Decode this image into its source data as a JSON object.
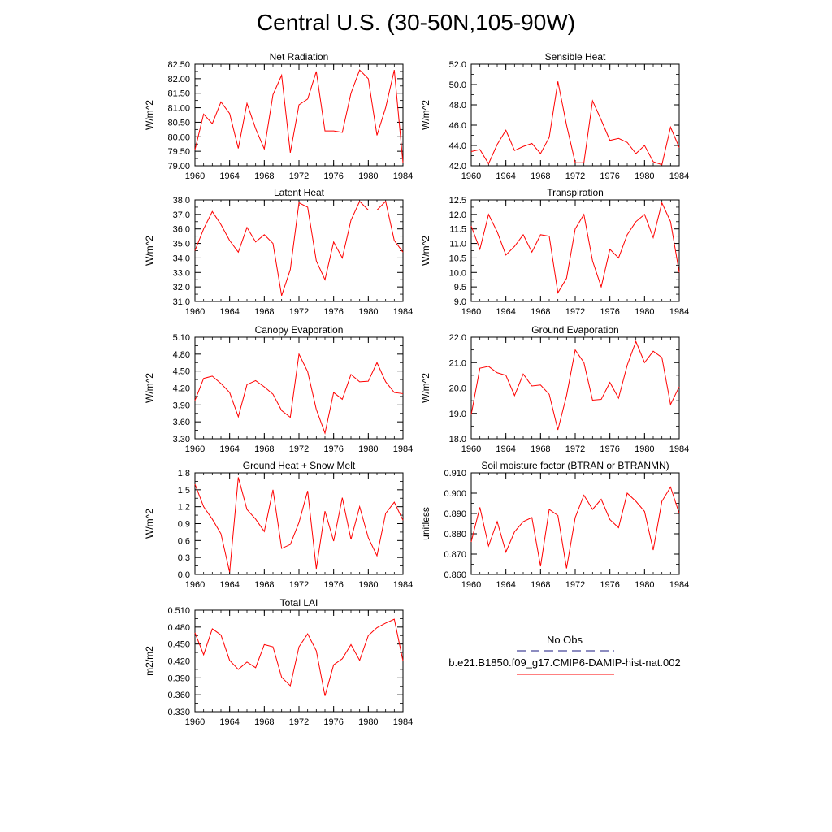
{
  "title": "Central U.S. (30-50N,105-90W)",
  "legend": {
    "obs_label": "No Obs",
    "model_label": "b.e21.B1850.f09_g17.CMIP6-DAMIP-hist-nat.002",
    "obs_color": "#1a1a80",
    "model_color": "#ff0000"
  },
  "chart_data": [
    {
      "type": "line",
      "title": "Net Radiation",
      "ylabel": "W/m^2",
      "xlim": [
        1960,
        1984
      ],
      "ylim": [
        79.0,
        82.5
      ],
      "y_decimals": 2,
      "xticks": [
        1960,
        1964,
        1968,
        1972,
        1976,
        1980,
        1984
      ],
      "yticks": [
        79.0,
        79.5,
        80.0,
        80.5,
        81.0,
        81.5,
        82.0,
        82.5
      ],
      "x": [
        1960,
        1961,
        1962,
        1963,
        1964,
        1965,
        1966,
        1967,
        1968,
        1969,
        1970,
        1971,
        1972,
        1973,
        1974,
        1975,
        1976,
        1977,
        1978,
        1979,
        1980,
        1981,
        1982,
        1983,
        1984
      ],
      "series": [
        {
          "values": [
            79.55,
            80.78,
            80.45,
            81.2,
            80.8,
            79.6,
            81.15,
            80.28,
            79.58,
            81.45,
            82.12,
            79.45,
            81.1,
            81.3,
            82.25,
            80.2,
            80.2,
            80.15,
            81.5,
            82.3,
            82.0,
            80.05,
            81.0,
            82.3,
            79.1
          ]
        }
      ]
    },
    {
      "type": "line",
      "title": "Sensible Heat",
      "ylabel": "W/m^2",
      "xlim": [
        1960,
        1984
      ],
      "ylim": [
        42.0,
        52.0
      ],
      "y_decimals": 1,
      "xticks": [
        1960,
        1964,
        1968,
        1972,
        1976,
        1980,
        1984
      ],
      "yticks": [
        42.0,
        44.0,
        46.0,
        48.0,
        50.0,
        52.0
      ],
      "x": [
        1960,
        1961,
        1962,
        1963,
        1964,
        1965,
        1966,
        1967,
        1968,
        1969,
        1970,
        1971,
        1972,
        1973,
        1974,
        1975,
        1976,
        1977,
        1978,
        1979,
        1980,
        1981,
        1982,
        1983,
        1984
      ],
      "series": [
        {
          "values": [
            43.4,
            43.6,
            42.2,
            44.1,
            45.5,
            43.5,
            43.9,
            44.2,
            43.2,
            44.8,
            50.3,
            46.0,
            42.3,
            42.3,
            48.4,
            46.5,
            44.5,
            44.7,
            44.3,
            43.2,
            44.0,
            42.4,
            42.1,
            45.8,
            43.8
          ]
        }
      ]
    },
    {
      "type": "line",
      "title": "Latent Heat",
      "ylabel": "W/m^2",
      "xlim": [
        1960,
        1984
      ],
      "ylim": [
        31.0,
        38.0
      ],
      "y_decimals": 1,
      "xticks": [
        1960,
        1964,
        1968,
        1972,
        1976,
        1980,
        1984
      ],
      "yticks": [
        31.0,
        32.0,
        33.0,
        34.0,
        35.0,
        36.0,
        37.0,
        38.0
      ],
      "x": [
        1960,
        1961,
        1962,
        1963,
        1964,
        1965,
        1966,
        1967,
        1968,
        1969,
        1970,
        1971,
        1972,
        1973,
        1974,
        1975,
        1976,
        1977,
        1978,
        1979,
        1980,
        1981,
        1982,
        1983,
        1984
      ],
      "series": [
        {
          "values": [
            34.5,
            36.0,
            37.2,
            36.3,
            35.2,
            34.4,
            36.1,
            35.1,
            35.6,
            35.0,
            31.4,
            33.2,
            37.8,
            37.5,
            33.8,
            32.5,
            35.1,
            34.0,
            36.6,
            37.9,
            37.3,
            37.3,
            37.9,
            35.2,
            34.4
          ]
        }
      ]
    },
    {
      "type": "line",
      "title": "Transpiration",
      "ylabel": "W/m^2",
      "xlim": [
        1960,
        1984
      ],
      "ylim": [
        9.0,
        12.5
      ],
      "y_decimals": 1,
      "xticks": [
        1960,
        1964,
        1968,
        1972,
        1976,
        1980,
        1984
      ],
      "yticks": [
        9.0,
        9.5,
        10.0,
        10.5,
        11.0,
        11.5,
        12.0,
        12.5
      ],
      "x": [
        1960,
        1961,
        1962,
        1963,
        1964,
        1965,
        1966,
        1967,
        1968,
        1969,
        1970,
        1971,
        1972,
        1973,
        1974,
        1975,
        1976,
        1977,
        1978,
        1979,
        1980,
        1981,
        1982,
        1983,
        1984
      ],
      "series": [
        {
          "values": [
            11.6,
            10.8,
            12.0,
            11.4,
            10.6,
            10.9,
            11.3,
            10.7,
            11.3,
            11.25,
            9.3,
            9.8,
            11.5,
            12.0,
            10.4,
            9.5,
            10.8,
            10.5,
            11.3,
            11.75,
            12.0,
            11.2,
            12.4,
            11.75,
            10.0
          ]
        }
      ]
    },
    {
      "type": "line",
      "title": "Canopy Evaporation",
      "ylabel": "W/m^2",
      "xlim": [
        1960,
        1984
      ],
      "ylim": [
        3.3,
        5.1
      ],
      "y_decimals": 2,
      "xticks": [
        1960,
        1964,
        1968,
        1972,
        1976,
        1980,
        1984
      ],
      "yticks": [
        3.3,
        3.6,
        3.9,
        4.2,
        4.5,
        4.8,
        5.1
      ],
      "x": [
        1960,
        1961,
        1962,
        1963,
        1964,
        1965,
        1966,
        1967,
        1968,
        1969,
        1970,
        1971,
        1972,
        1973,
        1974,
        1975,
        1976,
        1977,
        1978,
        1979,
        1980,
        1981,
        1982,
        1983,
        1984
      ],
      "series": [
        {
          "values": [
            3.98,
            4.37,
            4.41,
            4.28,
            4.12,
            3.69,
            4.26,
            4.33,
            4.22,
            4.09,
            3.8,
            3.68,
            4.8,
            4.49,
            3.82,
            3.4,
            4.12,
            4.0,
            4.44,
            4.31,
            4.32,
            4.65,
            4.31,
            4.12,
            4.1
          ]
        }
      ]
    },
    {
      "type": "line",
      "title": "Ground Evaporation",
      "ylabel": "W/m^2",
      "xlim": [
        1960,
        1984
      ],
      "ylim": [
        18.0,
        22.0
      ],
      "y_decimals": 1,
      "xticks": [
        1960,
        1964,
        1968,
        1972,
        1976,
        1980,
        1984
      ],
      "yticks": [
        18.0,
        19.0,
        20.0,
        21.0,
        22.0
      ],
      "x": [
        1960,
        1961,
        1962,
        1963,
        1964,
        1965,
        1966,
        1967,
        1968,
        1969,
        1970,
        1971,
        1972,
        1973,
        1974,
        1975,
        1976,
        1977,
        1978,
        1979,
        1980,
        1981,
        1982,
        1983,
        1984
      ],
      "series": [
        {
          "values": [
            18.95,
            20.78,
            20.85,
            20.6,
            20.5,
            19.7,
            20.55,
            20.08,
            20.12,
            19.75,
            18.35,
            19.7,
            21.5,
            21.0,
            19.52,
            19.55,
            20.22,
            19.6,
            20.9,
            21.83,
            21.0,
            21.45,
            21.2,
            19.35,
            20.05
          ]
        }
      ]
    },
    {
      "type": "line",
      "title": "Ground Heat + Snow Melt",
      "ylabel": "W/m^2",
      "xlim": [
        1960,
        1984
      ],
      "ylim": [
        0.0,
        1.8
      ],
      "y_decimals": 1,
      "xticks": [
        1960,
        1964,
        1968,
        1972,
        1976,
        1980,
        1984
      ],
      "yticks": [
        0.0,
        0.3,
        0.6,
        0.9,
        1.2,
        1.5,
        1.8
      ],
      "x": [
        1960,
        1961,
        1962,
        1963,
        1964,
        1965,
        1966,
        1967,
        1968,
        1969,
        1970,
        1971,
        1972,
        1973,
        1974,
        1975,
        1976,
        1977,
        1978,
        1979,
        1980,
        1981,
        1982,
        1983,
        1984
      ],
      "series": [
        {
          "values": [
            1.6,
            1.2,
            0.98,
            0.72,
            0.04,
            1.72,
            1.15,
            0.98,
            0.76,
            1.5,
            0.46,
            0.53,
            0.92,
            1.48,
            0.1,
            1.12,
            0.59,
            1.36,
            0.62,
            1.2,
            0.65,
            0.33,
            1.08,
            1.28,
            0.96
          ]
        }
      ]
    },
    {
      "type": "line",
      "title": "Soil moisture factor (BTRAN or BTRANMN)",
      "ylabel": "unitless",
      "xlim": [
        1960,
        1984
      ],
      "ylim": [
        0.86,
        0.91
      ],
      "y_decimals": 3,
      "xticks": [
        1960,
        1964,
        1968,
        1972,
        1976,
        1980,
        1984
      ],
      "yticks": [
        0.86,
        0.87,
        0.88,
        0.89,
        0.9,
        0.91
      ],
      "x": [
        1960,
        1961,
        1962,
        1963,
        1964,
        1965,
        1966,
        1967,
        1968,
        1969,
        1970,
        1971,
        1972,
        1973,
        1974,
        1975,
        1976,
        1977,
        1978,
        1979,
        1980,
        1981,
        1982,
        1983,
        1984
      ],
      "series": [
        {
          "values": [
            0.876,
            0.893,
            0.874,
            0.886,
            0.871,
            0.881,
            0.886,
            0.888,
            0.864,
            0.892,
            0.889,
            0.863,
            0.888,
            0.899,
            0.892,
            0.897,
            0.887,
            0.883,
            0.9,
            0.896,
            0.891,
            0.872,
            0.896,
            0.903,
            0.89
          ]
        }
      ]
    },
    {
      "type": "line",
      "title": "Total LAI",
      "ylabel": "m2/m2",
      "xlim": [
        1960,
        1984
      ],
      "ylim": [
        0.33,
        0.51
      ],
      "y_decimals": 3,
      "xticks": [
        1960,
        1964,
        1968,
        1972,
        1976,
        1980,
        1984
      ],
      "yticks": [
        0.33,
        0.36,
        0.39,
        0.42,
        0.45,
        0.48,
        0.51
      ],
      "x": [
        1960,
        1961,
        1962,
        1963,
        1964,
        1965,
        1966,
        1967,
        1968,
        1969,
        1970,
        1971,
        1972,
        1973,
        1974,
        1975,
        1976,
        1977,
        1978,
        1979,
        1980,
        1981,
        1982,
        1983,
        1984
      ],
      "series": [
        {
          "values": [
            0.47,
            0.431,
            0.477,
            0.466,
            0.421,
            0.405,
            0.418,
            0.408,
            0.449,
            0.445,
            0.391,
            0.376,
            0.445,
            0.468,
            0.438,
            0.358,
            0.413,
            0.424,
            0.449,
            0.421,
            0.465,
            0.479,
            0.487,
            0.494,
            0.42
          ]
        }
      ]
    }
  ]
}
